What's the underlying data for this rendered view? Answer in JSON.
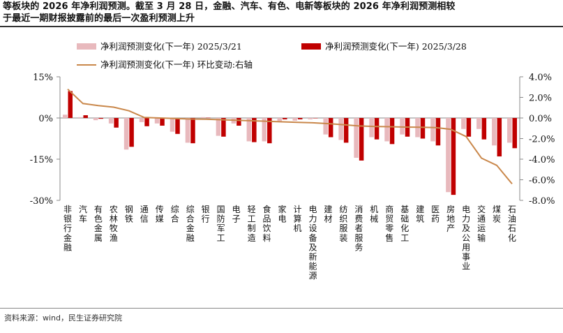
{
  "header": {
    "title_line1": "等板块的 2026 年净利润预测。截至 3 月 28 日，金融、汽车、有色、电新等板块的 2026 年净利润预测相较",
    "title_line2": "于最近一期财报披露前的最后一次盈利预测上升"
  },
  "footer": {
    "source": "资料来源：wind，民生证券研究院"
  },
  "colors": {
    "series1": "#e8b9bd",
    "series2": "#c00000",
    "line": "#c9874a",
    "axis": "#888888"
  },
  "chart_data": {
    "type": "bar",
    "categories": [
      "非银行金融",
      "汽车",
      "有色金属",
      "农林牧渔",
      "钢铁",
      "通信",
      "传媒",
      "综合",
      "综合金融",
      "银行",
      "国防军工",
      "电子",
      "轻工制造",
      "食品饮料",
      "家电",
      "计算机",
      "电力设备及新能源",
      "建材",
      "纺织服装",
      "消费者服务",
      "机械",
      "商贸零售",
      "基础化工",
      "建筑",
      "医药",
      "房地产",
      "电力及公用事业",
      "交通运输",
      "煤炭",
      "石油石化"
    ],
    "series": [
      {
        "name": "净利润预测变化(下一年) 2025/3/21",
        "type": "bar",
        "axis": "left",
        "values": [
          1.2,
          0.3,
          -0.8,
          -2.0,
          -11.5,
          -1.5,
          -2.0,
          -5.0,
          -9.0,
          0.3,
          -6.5,
          -2.0,
          -8.5,
          -8.5,
          -1.5,
          -1.0,
          -0.5,
          -6.0,
          -8.0,
          -14.5,
          -7.0,
          -8.5,
          -6.0,
          -7.0,
          -8.5,
          -27.0,
          -4.0,
          -4.0,
          -10.0,
          -9.0
        ]
      },
      {
        "name": "净利润预测变化(下一年) 2025/3/28",
        "type": "bar",
        "axis": "left",
        "values": [
          9.8,
          1.0,
          -0.3,
          -3.5,
          -10.5,
          -3.0,
          -2.8,
          -5.8,
          -9.2,
          0.1,
          -6.8,
          -2.8,
          -8.8,
          -9.2,
          -0.5,
          -0.5,
          -0.1,
          -7.0,
          -9.0,
          -15.5,
          -7.8,
          -9.5,
          -6.8,
          -7.5,
          -10.0,
          -28.0,
          -6.8,
          -7.8,
          -14.0,
          -11.0
        ]
      },
      {
        "name": "净利润预测变化(下一年) 环比变动:右轴",
        "type": "line",
        "axis": "right",
        "values": [
          2.8,
          1.4,
          1.2,
          1.05,
          0.7,
          0.05,
          0.0,
          -0.05,
          -0.1,
          -0.12,
          -0.17,
          -0.22,
          -0.27,
          -0.32,
          -0.37,
          -0.42,
          -0.47,
          -0.55,
          -0.65,
          -0.77,
          -0.82,
          -0.85,
          -0.88,
          -0.9,
          -0.93,
          -1.1,
          -1.8,
          -3.9,
          -4.6,
          -6.4
        ]
      }
    ],
    "yleft": {
      "min": -30,
      "max": 15,
      "ticks": [
        15,
        0,
        -15,
        -30
      ],
      "tick_labels": [
        "15%",
        "0%",
        "-15%",
        "-30%"
      ]
    },
    "yright": {
      "min": -8,
      "max": 4,
      "ticks": [
        4,
        2,
        0,
        -2,
        -4,
        -6,
        -8
      ],
      "tick_labels": [
        "4.0%",
        "2.0%",
        "0.0%",
        "-2.0%",
        "-4.0%",
        "-6.0%",
        "-8.0%"
      ]
    },
    "legend": [
      "净利润预测变化(下一年) 2025/3/21",
      "净利润预测变化(下一年) 2025/3/28",
      "净利润预测变化(下一年) 环比变动:右轴"
    ],
    "legend_position": "top",
    "grid": false
  }
}
